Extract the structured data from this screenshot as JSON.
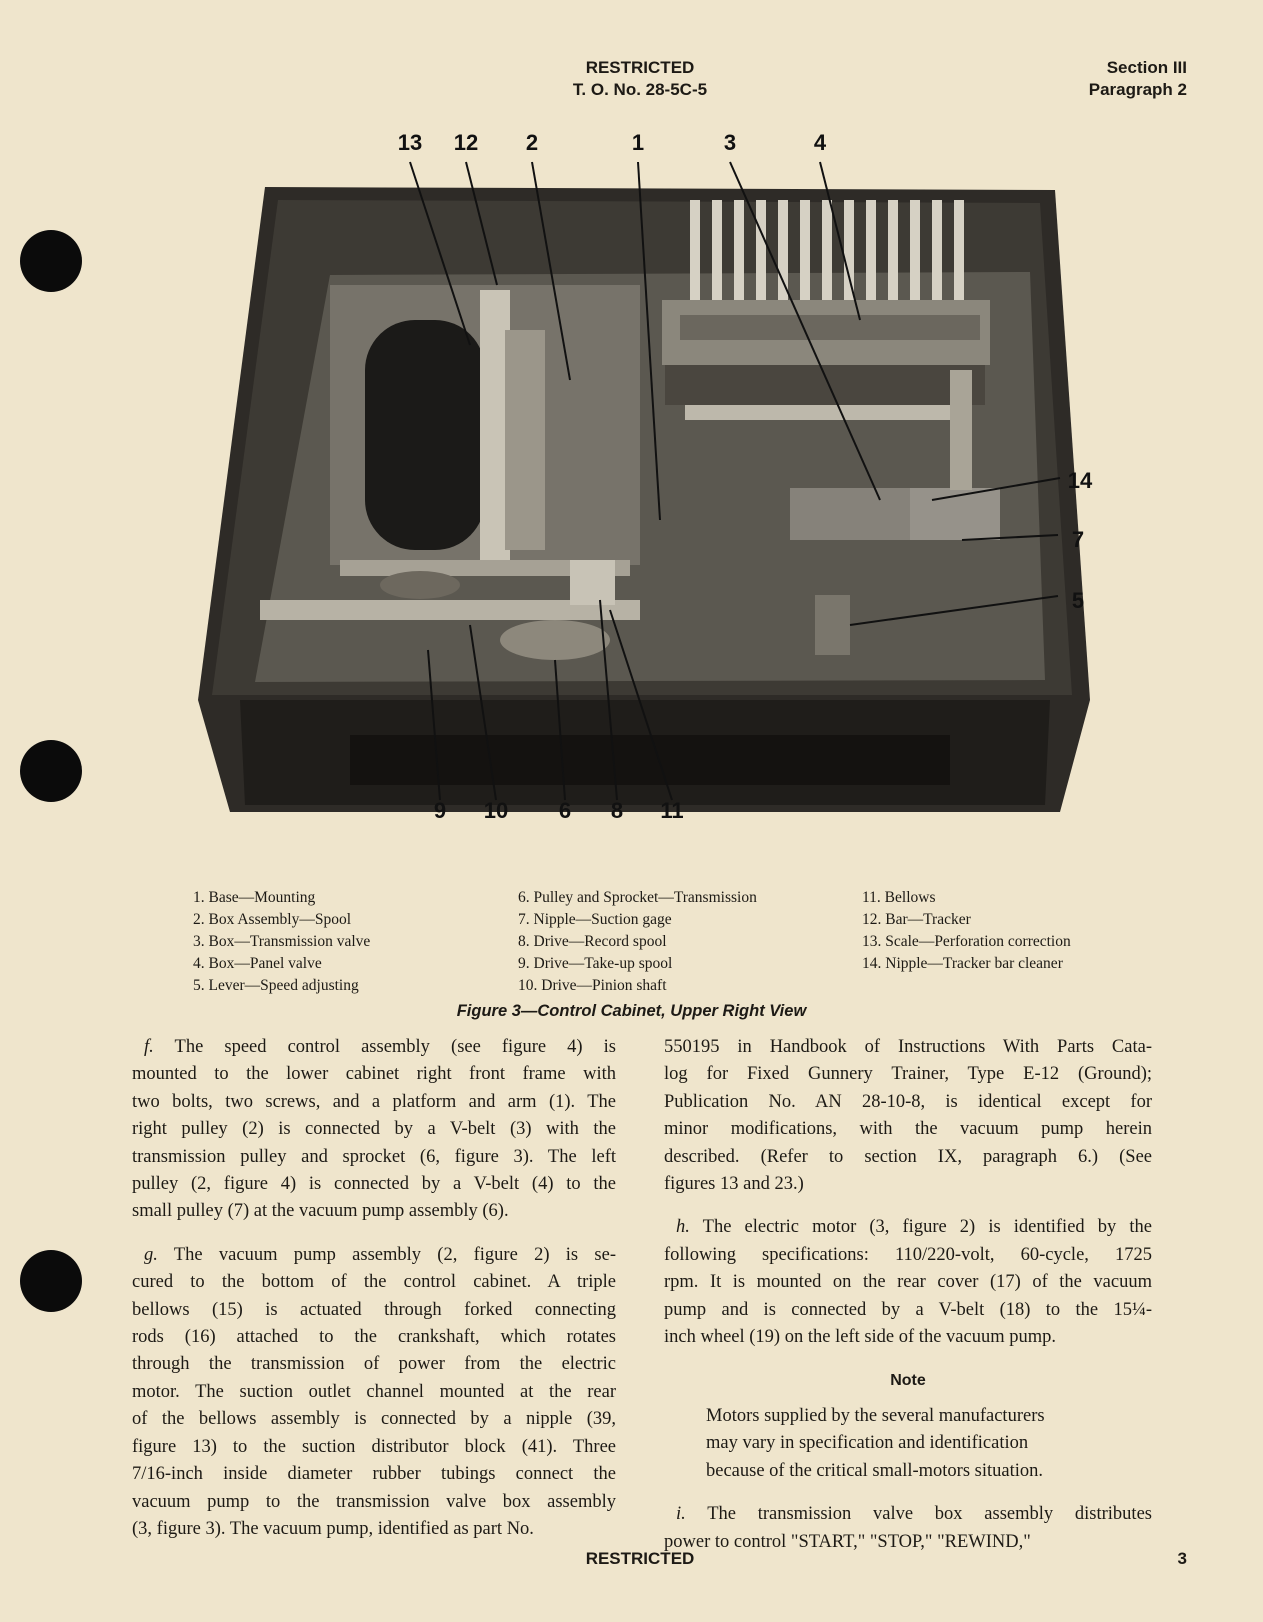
{
  "header": {
    "classification": "RESTRICTED",
    "to_number": "T. O. No. 28-5C-5",
    "section": "Section III",
    "paragraph": "Paragraph 2"
  },
  "figure": {
    "callouts": [
      "13",
      "12",
      "2",
      "1",
      "3",
      "4",
      "14",
      "7",
      "5",
      "9",
      "10",
      "6",
      "8",
      "11"
    ],
    "legend": [
      [
        "1. Base—Mounting",
        "2. Box Assembly—Spool",
        "3. Box—Transmission valve",
        "4. Box—Panel valve",
        "5. Lever—Speed adjusting"
      ],
      [
        "6. Pulley and Sprocket—Transmission",
        "7. Nipple—Suction gage",
        "8. Drive—Record spool",
        "9. Drive—Take-up spool",
        "10. Drive—Pinion shaft"
      ],
      [
        "11. Bellows",
        "12. Bar—Tracker",
        "13. Scale—Perforation correction",
        "14. Nipple—Tracker bar cleaner"
      ]
    ],
    "caption": "Figure 3—Control Cabinet, Upper Right View"
  },
  "body": {
    "left": [
      {
        "label": "f.",
        "lines": [
          "The speed control assembly (see figure 4) is",
          "mounted to the lower cabinet right front frame with",
          "two bolts, two screws, and a platform and arm (1). The",
          "right pulley (2) is connected by a V-belt (3) with the",
          "transmission pulley and sprocket (6, figure 3). The left",
          "pulley (2, figure 4) is connected by a V-belt (4) to the",
          "small pulley (7) at the vacuum pump assembly (6)."
        ]
      },
      {
        "label": "g.",
        "lines": [
          "The vacuum pump assembly (2, figure 2) is se-",
          "cured to the bottom of the control cabinet. A triple",
          "bellows (15) is actuated through forked connecting",
          "rods (16) attached to the crankshaft, which rotates",
          "through the transmission of power from the electric",
          "motor. The suction outlet channel mounted at the rear",
          "of the bellows assembly is connected by a nipple (39,",
          "figure 13) to the suction distributor block (41). Three",
          "7/16-inch inside diameter rubber tubings connect the",
          "vacuum pump to the transmission valve box assembly",
          "(3, figure 3). The vacuum pump, identified as part No."
        ]
      }
    ],
    "right": [
      {
        "lines": [
          "550195 in Handbook of Instructions With Parts Cata-",
          "log for Fixed Gunnery Trainer, Type E-12 (Ground);",
          "Publication No. AN 28-10-8, is identical except for",
          "minor modifications, with the vacuum pump herein",
          "described. (Refer to section IX, paragraph 6.) (See",
          "figures 13 and 23.)"
        ]
      },
      {
        "label": "h.",
        "lines": [
          "The electric motor (3, figure 2) is identified by the",
          "following specifications: 110/220-volt, 60-cycle, 1725",
          "rpm. It is mounted on the rear cover (17) of the vacuum",
          "pump and is connected by a V-belt (18) to the 15¼-",
          "inch wheel (19) on the left side of the vacuum pump."
        ]
      }
    ],
    "note": {
      "heading": "Note",
      "lines": [
        "Motors supplied by the several manufacturers",
        "may vary in specification and identification",
        "because of the critical small-motors situation."
      ]
    },
    "after_note": {
      "label": "i.",
      "lines": [
        "The transmission valve box assembly distributes",
        "power to control \"START,\" \"STOP,\" \"REWIND,\""
      ]
    }
  },
  "footer": {
    "classification": "RESTRICTED",
    "page": "3"
  }
}
